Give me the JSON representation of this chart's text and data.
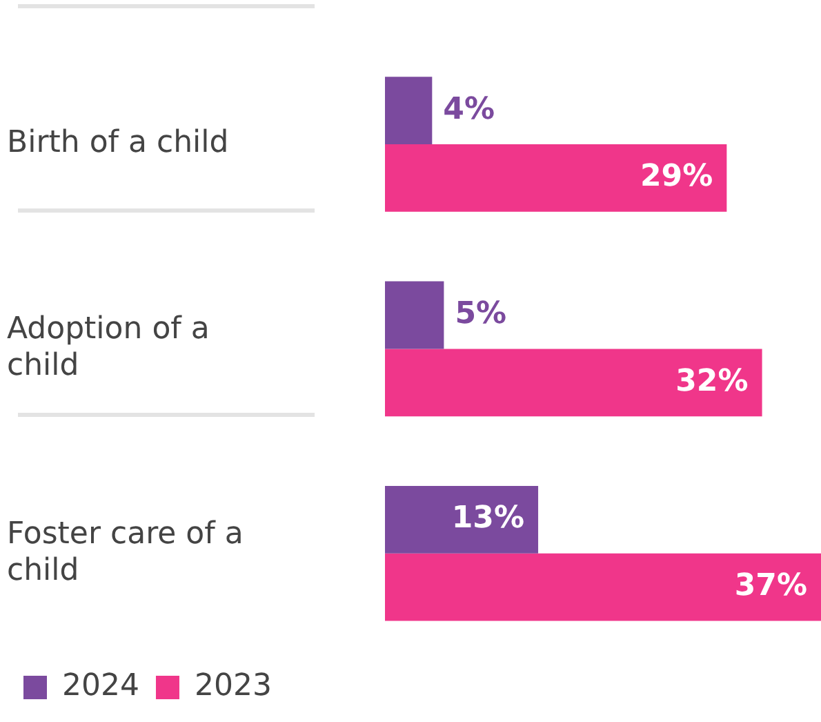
{
  "chart_data": {
    "type": "bar",
    "orientation": "horizontal",
    "legend": "bottom left",
    "categories": [
      "Birth of a child",
      "Adoption of a child",
      "Foster care of a child"
    ],
    "series": [
      {
        "name": "2024",
        "color": "#7b4a9e",
        "values": [
          4,
          5,
          13
        ],
        "value_labels": [
          "4%",
          "5%",
          "13%"
        ]
      },
      {
        "name": "2023",
        "color": "#f0368a",
        "values": [
          29,
          32,
          37
        ],
        "value_labels": [
          "29%",
          "32%",
          "37%"
        ]
      }
    ]
  }
}
